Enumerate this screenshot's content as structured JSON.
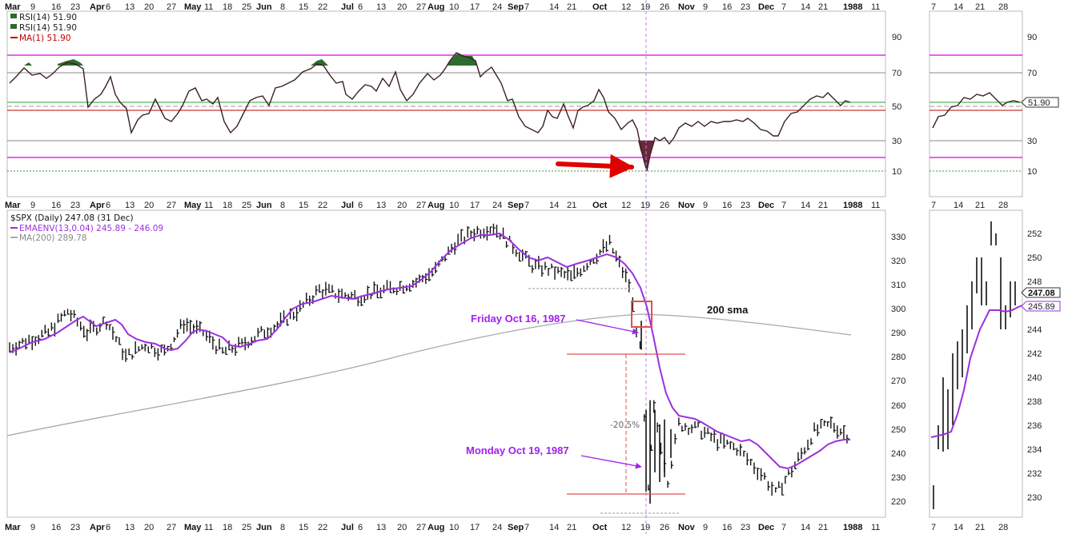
{
  "chart_data": {
    "type": "financial-chart",
    "symbol_legend": "$SPX (Daily) 247.08 (31 Dec)",
    "ema_legend": "EMAENV(13,0.04) 245.89 - 246.09",
    "ma_legend": "MA(200) 289.78",
    "rsi_legend_1": "RSI(14) 51.90",
    "rsi_legend_2": "RSI(14) 51.90",
    "rsi_legend_3": "MA(1) 51.90",
    "month_labels": [
      "Mar",
      "9",
      "16",
      "23",
      "Apr",
      "6",
      "13",
      "20",
      "27",
      "May",
      "11",
      "18",
      "25",
      "Jun",
      "8",
      "15",
      "22",
      "Jul",
      "6",
      "13",
      "20",
      "27",
      "Aug",
      "10",
      "17",
      "24",
      "Sep",
      "7",
      "14",
      "21",
      "Oct",
      "12",
      "19",
      "26",
      "Nov",
      "9",
      "16",
      "23",
      "Dec",
      "7",
      "14",
      "21",
      "1988",
      "11"
    ],
    "side_month_labels": [
      "7",
      "14",
      "21",
      "28"
    ],
    "rsi_ticks": [
      "90",
      "70",
      "50",
      "30",
      "10"
    ],
    "price_ticks": [
      "330",
      "320",
      "310",
      "300",
      "290",
      "280",
      "270",
      "260",
      "250",
      "240",
      "230",
      "220"
    ],
    "side_price_ticks": [
      "252",
      "250",
      "248",
      "246",
      "244",
      "242",
      "240",
      "238",
      "236",
      "234",
      "232",
      "230"
    ],
    "rsi_levels": {
      "overbought": 80,
      "upper": 70,
      "mid": 50,
      "lower": 30,
      "oversold": 20,
      "extreme": 12
    },
    "rsi_last_tag": "51.90",
    "last_price_tag": "247.08",
    "last_ema_tag": "245.89",
    "annotations": {
      "friday": "Friday Oct 16, 1987",
      "monday": "Monday Oct 19, 1987",
      "sma": "200 sma",
      "drop": "-20.5%"
    },
    "price_path": [
      {
        "d": "1987-03-02",
        "v": 284
      },
      {
        "d": "1987-03-09",
        "v": 287
      },
      {
        "d": "1987-03-16",
        "v": 290
      },
      {
        "d": "1987-03-23",
        "v": 299
      },
      {
        "d": "1987-03-30",
        "v": 290
      },
      {
        "d": "1987-04-06",
        "v": 295
      },
      {
        "d": "1987-04-13",
        "v": 280
      },
      {
        "d": "1987-04-20",
        "v": 285
      },
      {
        "d": "1987-04-27",
        "v": 282
      },
      {
        "d": "1987-05-04",
        "v": 294
      },
      {
        "d": "1987-05-11",
        "v": 290
      },
      {
        "d": "1987-05-18",
        "v": 282
      },
      {
        "d": "1987-05-25",
        "v": 285
      },
      {
        "d": "1987-06-01",
        "v": 290
      },
      {
        "d": "1987-06-08",
        "v": 294
      },
      {
        "d": "1987-06-15",
        "v": 300
      },
      {
        "d": "1987-06-22",
        "v": 308
      },
      {
        "d": "1987-06-29",
        "v": 306
      },
      {
        "d": "1987-07-06",
        "v": 305
      },
      {
        "d": "1987-07-13",
        "v": 307
      },
      {
        "d": "1987-07-20",
        "v": 309
      },
      {
        "d": "1987-07-27",
        "v": 311
      },
      {
        "d": "1987-08-03",
        "v": 316
      },
      {
        "d": "1987-08-10",
        "v": 327
      },
      {
        "d": "1987-08-17",
        "v": 332
      },
      {
        "d": "1987-08-24",
        "v": 334
      },
      {
        "d": "1987-08-31",
        "v": 326
      },
      {
        "d": "1987-09-07",
        "v": 318
      },
      {
        "d": "1987-09-14",
        "v": 316
      },
      {
        "d": "1987-09-21",
        "v": 313
      },
      {
        "d": "1987-09-28",
        "v": 320
      },
      {
        "d": "1987-10-05",
        "v": 327
      },
      {
        "d": "1987-10-12",
        "v": 310
      },
      {
        "d": "1987-10-16",
        "v": 283
      },
      {
        "d": "1987-10-19",
        "v": 224
      },
      {
        "d": "1987-10-21",
        "v": 258
      },
      {
        "d": "1987-10-26",
        "v": 229
      },
      {
        "d": "1987-10-30",
        "v": 252
      },
      {
        "d": "1987-11-06",
        "v": 250
      },
      {
        "d": "1987-11-13",
        "v": 245
      },
      {
        "d": "1987-11-20",
        "v": 242
      },
      {
        "d": "1987-11-30",
        "v": 230
      },
      {
        "d": "1987-12-04",
        "v": 223
      },
      {
        "d": "1987-12-11",
        "v": 235
      },
      {
        "d": "1987-12-18",
        "v": 249
      },
      {
        "d": "1987-12-24",
        "v": 252
      },
      {
        "d": "1987-12-31",
        "v": 247
      }
    ]
  }
}
